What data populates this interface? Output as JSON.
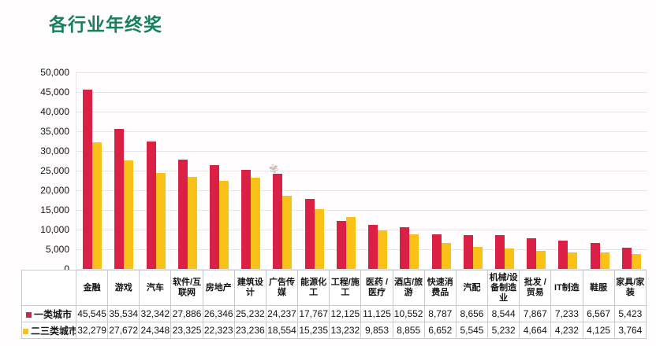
{
  "title": "各行业年终奖",
  "watermark_icon": "✾",
  "colors": {
    "title_green": "#17805d",
    "tier1_red": "#da2145",
    "tier2_yellow": "#fac219",
    "gridline": "#e6e6ec",
    "table_border": "#c9c9c9",
    "text": "#141414"
  },
  "chart_data": {
    "type": "bar",
    "title": "各行业年终奖",
    "categories": [
      "金融",
      "游戏",
      "汽车",
      "软件/互联网",
      "房地产",
      "建筑设计",
      "广告传媒",
      "能源化工",
      "工程/施工",
      "医药 / 医疗",
      "酒店/旅游",
      "快速消费品",
      "汽配",
      "机械/设备制造业",
      "批发 / 贸易",
      "IT制造",
      "鞋服",
      "家具/家装"
    ],
    "series": [
      {
        "name": "一类城市",
        "color": "#da2145",
        "values": [
          45545,
          35534,
          32342,
          27886,
          26346,
          25232,
          24237,
          17767,
          12125,
          11125,
          10552,
          8787,
          8656,
          8544,
          7867,
          7233,
          6567,
          5423
        ]
      },
      {
        "name": "二三类城市",
        "color": "#fac219",
        "values": [
          32279,
          27672,
          24348,
          23325,
          22323,
          23236,
          18554,
          15235,
          13232,
          9853,
          8855,
          6652,
          5545,
          5232,
          4664,
          4232,
          4125,
          3764
        ]
      }
    ],
    "ylim": [
      0,
      50000
    ],
    "ytick_step": 5000,
    "ytick_labels": [
      "0",
      "5,000",
      "10,000",
      "15,000",
      "20,000",
      "25,000",
      "30,000",
      "35,000",
      "40,000",
      "45,000",
      "50,000"
    ],
    "grid": true,
    "legend_position": "table-row-headers"
  }
}
